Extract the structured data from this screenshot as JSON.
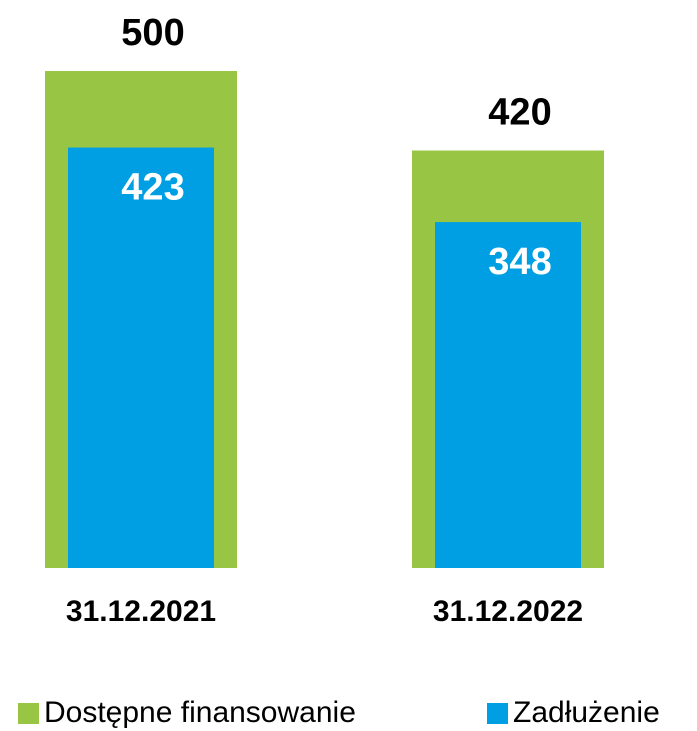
{
  "chart_data": {
    "type": "bar",
    "overlap": true,
    "categories": [
      "31.12.2021",
      "31.12.2022"
    ],
    "series": [
      {
        "name": "Dostępne finansowanie",
        "color": "#98c543",
        "values": [
          500,
          420
        ]
      },
      {
        "name": "Zadłużenie",
        "color": "#009fe3",
        "values": [
          423,
          348
        ]
      }
    ],
    "legend": "bottom"
  }
}
